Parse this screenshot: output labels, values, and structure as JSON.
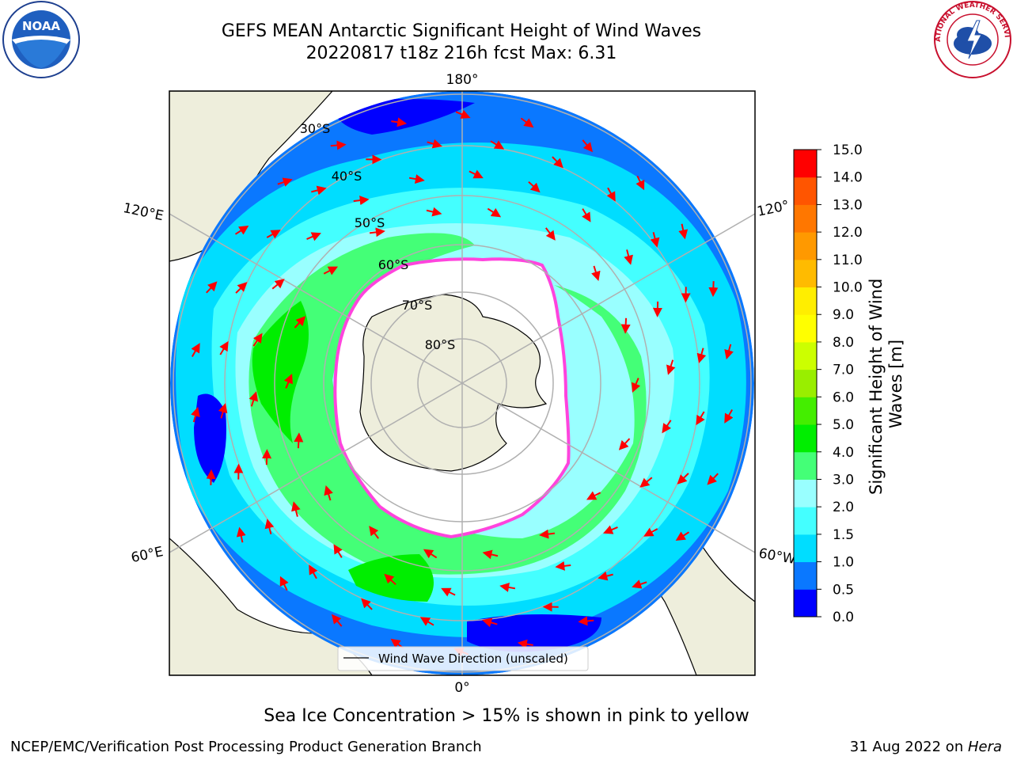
{
  "header": {
    "title_line1": "GEFS MEAN Antarctic Significant Height of Wind Waves",
    "title_line2": "20220817 t18z 216h fcst   Max: 6.31"
  },
  "logos": {
    "left": "noaa-logo",
    "right": "national-weather-service-logo",
    "left_text": "NOAA",
    "right_text": "NATIONAL WEATHER SERVICE"
  },
  "map": {
    "projection": "south-polar-stereographic",
    "longitude_labels": {
      "top": "180°",
      "bottom": "0°",
      "upper_left": "120°E",
      "lower_left": "60°E",
      "upper_right": "120°",
      "lower_right": "60°W"
    },
    "latitude_labels": [
      "30°S",
      "40°S",
      "50°S",
      "60°S",
      "70°S",
      "80°S"
    ],
    "legend_text": "Wind Wave Direction (unscaled)",
    "colors": {
      "land": "#eeeedc",
      "ocean_low": "#0000ff",
      "ice_edge": "#ff44dd"
    }
  },
  "colorbar": {
    "label": "Significant Height of Wind Waves [m]",
    "tick_labels": [
      "0.0",
      "0.5",
      "1.0",
      "1.5",
      "2.0",
      "3.0",
      "4.0",
      "5.0",
      "6.0",
      "7.0",
      "8.0",
      "9.0",
      "10.0",
      "11.0",
      "12.0",
      "13.0",
      "14.0",
      "15.0"
    ],
    "colors": [
      "#0000ff",
      "#0a78ff",
      "#00ddff",
      "#44ffff",
      "#99ffff",
      "#44ff77",
      "#00ee00",
      "#44ee00",
      "#99ee00",
      "#ccff00",
      "#ffff00",
      "#ffee00",
      "#ffbb00",
      "#ff9900",
      "#ff7700",
      "#ff5500",
      "#ff0000"
    ]
  },
  "footer": {
    "subtitle": "Sea Ice Concentration > 15% is shown in pink to yellow",
    "credit": "NCEP/EMC/Verification Post Processing Product Generation Branch",
    "date_prefix": "31 Aug 2022 on ",
    "date_machine": "Hera"
  }
}
